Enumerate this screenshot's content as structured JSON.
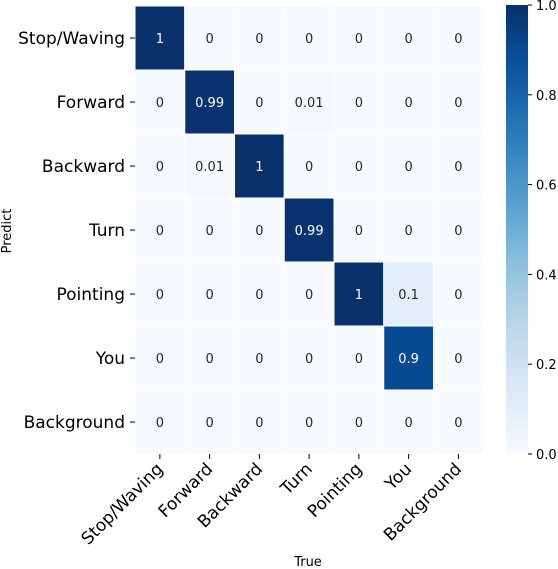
{
  "chart_data": {
    "type": "heatmap",
    "title": "",
    "xlabel": "True",
    "ylabel": "Predict",
    "x_categories": [
      "Stop/Waving",
      "Forward",
      "Backward",
      "Turn",
      "Pointing",
      "You",
      "Background"
    ],
    "y_categories": [
      "Stop/Waving",
      "Forward",
      "Backward",
      "Turn",
      "Pointing",
      "You",
      "Background"
    ],
    "values": [
      [
        1,
        0,
        0,
        0,
        0,
        0,
        0
      ],
      [
        0,
        0.99,
        0,
        0.01,
        0,
        0,
        0
      ],
      [
        0,
        0.01,
        1,
        0,
        0,
        0,
        0
      ],
      [
        0,
        0,
        0,
        0.99,
        0,
        0,
        0
      ],
      [
        0,
        0,
        0,
        0,
        1,
        0.1,
        0
      ],
      [
        0,
        0,
        0,
        0,
        0,
        0.9,
        0
      ],
      [
        0,
        0,
        0,
        0,
        0,
        0,
        0
      ]
    ],
    "colorbar": {
      "min": 0.0,
      "max": 1.0,
      "ticks": [
        "0.0",
        "0.2",
        "0.4",
        "0.6",
        "0.8",
        "1.0"
      ],
      "colormap": "Blues"
    },
    "colors": {
      "low": "#f7fbff",
      "high": "#08306b",
      "text_dark": "#262626",
      "text_light": "#ffffff",
      "cell_border": "#ffffff"
    }
  }
}
